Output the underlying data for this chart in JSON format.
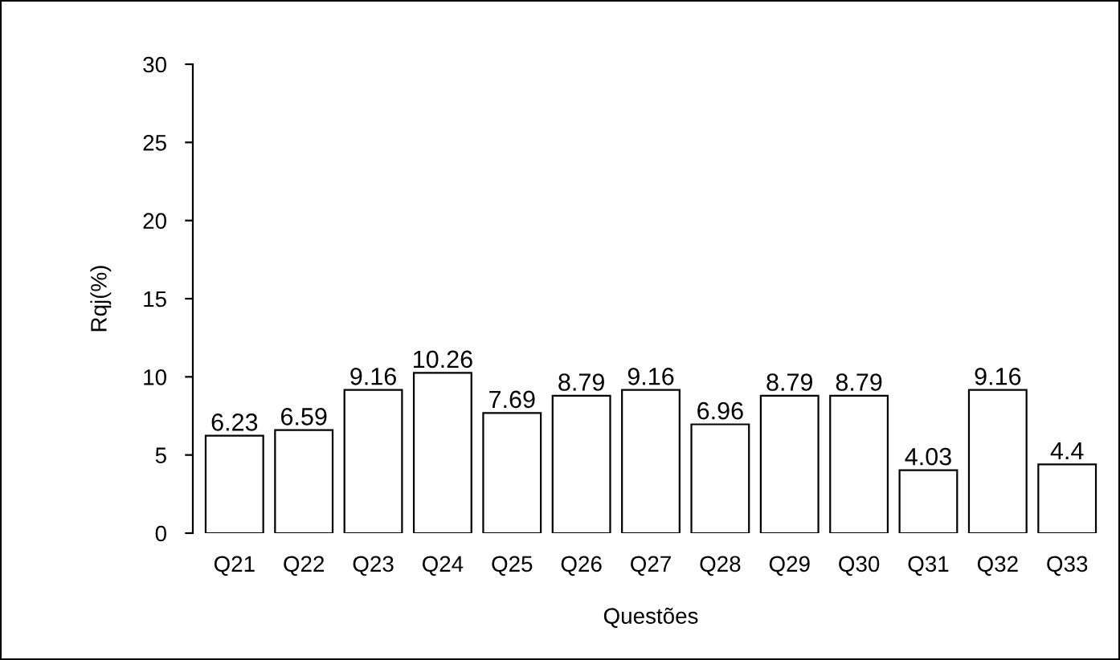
{
  "chart_data": {
    "type": "bar",
    "xlabel": "Questões",
    "ylabel": "Rqj(%)",
    "categories": [
      "Q21",
      "Q22",
      "Q23",
      "Q24",
      "Q25",
      "Q26",
      "Q27",
      "Q28",
      "Q29",
      "Q30",
      "Q31",
      "Q32",
      "Q33"
    ],
    "values": [
      6.23,
      6.59,
      9.16,
      10.26,
      7.69,
      8.79,
      9.16,
      6.96,
      8.79,
      8.79,
      4.03,
      9.16,
      4.4
    ],
    "color": "#ffffff",
    "ylim": [
      0,
      30
    ],
    "yticks": [
      0,
      5,
      10,
      15,
      20,
      25,
      30
    ],
    "data_labels": true,
    "grid": false,
    "legend": false
  }
}
